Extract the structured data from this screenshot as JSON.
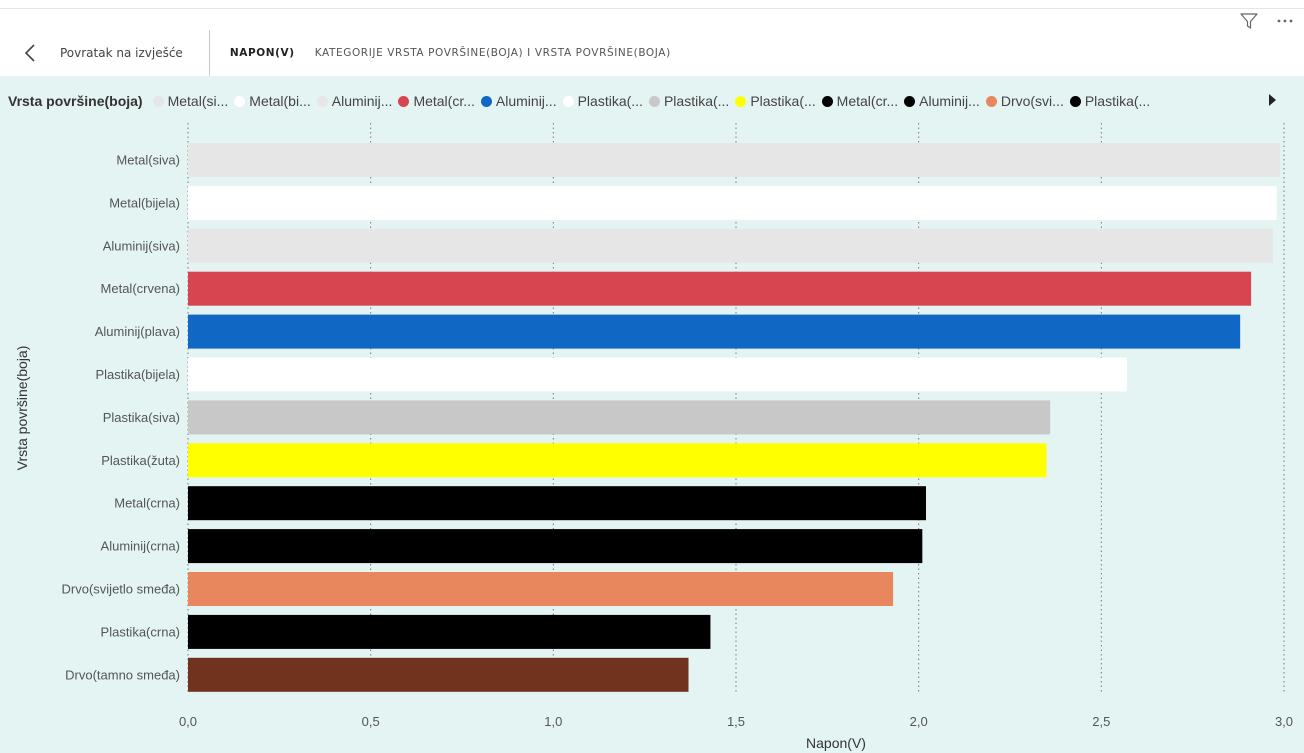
{
  "header": {
    "back_label": "Povratak na izvješće",
    "tabs": [
      {
        "label": "NAPON(V)",
        "active": true
      },
      {
        "label": "KATEGORIJE VRSTA POVRŠINE(BOJA) I VRSTA POVRŠINE(BOJA)",
        "active": false
      }
    ]
  },
  "icons": {
    "filter": "filter-icon",
    "more": "more-options-icon",
    "back": "chevron-left-icon",
    "legend_next": "legend-next-arrow-icon"
  },
  "legend": {
    "title": "Vrsta površine(boja)",
    "items": [
      {
        "label": "Metal(si...",
        "color": "#e6e6e6"
      },
      {
        "label": "Metal(bi...",
        "color": "#ffffff"
      },
      {
        "label": "Aluminij...",
        "color": "#e6e6e6"
      },
      {
        "label": "Metal(cr...",
        "color": "#d64550"
      },
      {
        "label": "Aluminij...",
        "color": "#1068c4"
      },
      {
        "label": "Plastika(...",
        "color": "#ffffff"
      },
      {
        "label": "Plastika(...",
        "color": "#c8c8c8"
      },
      {
        "label": "Plastika(...",
        "color": "#ffff00"
      },
      {
        "label": "Metal(cr...",
        "color": "#000000"
      },
      {
        "label": "Aluminij...",
        "color": "#000000"
      },
      {
        "label": "Drvo(svi...",
        "color": "#e8875e"
      },
      {
        "label": "Plastika(...",
        "color": "#000000"
      }
    ]
  },
  "chart_data": {
    "type": "bar",
    "orientation": "horizontal",
    "xlabel": "Napon(V)",
    "ylabel": "Vrsta površine(boja)",
    "xlim": [
      0,
      3.0
    ],
    "xticks": [
      "0,0",
      "0,5",
      "1,0",
      "1,5",
      "2,0",
      "2,5",
      "3,0"
    ],
    "grid": "vertical dotted",
    "legend_position": "top",
    "categories": [
      "Metal(siva)",
      "Metal(bijela)",
      "Aluminij(siva)",
      "Metal(crvena)",
      "Aluminij(plava)",
      "Plastika(bijela)",
      "Plastika(siva)",
      "Plastika(žuta)",
      "Metal(crna)",
      "Aluminij(crna)",
      "Drvo(svijetlo smeđa)",
      "Plastika(crna)",
      "Drvo(tamno smeđa)"
    ],
    "values": [
      2.99,
      2.98,
      2.97,
      2.91,
      2.88,
      2.57,
      2.36,
      2.35,
      2.02,
      2.01,
      1.93,
      1.43,
      1.37
    ],
    "colors": [
      "#e6e6e6",
      "#ffffff",
      "#e6e6e6",
      "#d64550",
      "#1068c4",
      "#ffffff",
      "#c8c8c8",
      "#ffff00",
      "#000000",
      "#000000",
      "#e8875e",
      "#000000",
      "#71331e"
    ]
  }
}
